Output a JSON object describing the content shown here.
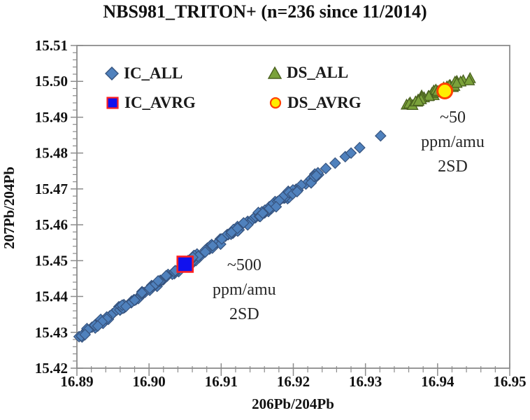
{
  "chart_data": {
    "type": "scatter",
    "title": "NBS981_TRITON+ (n=236 since 11/2014)",
    "xlabel": "206Pb/204Pb",
    "ylabel": "207Pb/204Pb",
    "xlim": [
      16.89,
      16.95
    ],
    "ylim": [
      15.42,
      15.51
    ],
    "x_ticks": [
      16.89,
      16.9,
      16.91,
      16.92,
      16.93,
      16.94,
      16.95
    ],
    "y_ticks": [
      15.42,
      15.43,
      15.44,
      15.45,
      15.46,
      15.47,
      15.48,
      15.49,
      15.5,
      15.51
    ],
    "minor_tick_step": 0.002,
    "grid": false,
    "frame_color": "#8C8C8C",
    "scatter_seed": 20141101,
    "legend_position": "top-inside, two columns",
    "series": [
      {
        "name": "IC_ALL",
        "marker": "diamond",
        "fill": "#4F81BD",
        "stroke": "#36537E",
        "n_dense": 190,
        "x_min": 16.8903,
        "x_max": 16.9235,
        "trend_slope": 1.36,
        "trend_anchor_x": 16.905,
        "trend_anchor_y": 15.4488,
        "y_jitter": 0.0011,
        "extra_points": [
          [
            16.9245,
            15.4757
          ],
          [
            16.9258,
            15.4772
          ],
          [
            16.9272,
            15.479
          ],
          [
            16.928,
            15.48
          ],
          [
            16.9292,
            15.4815
          ],
          [
            16.9321,
            15.4848
          ]
        ]
      },
      {
        "name": "DS_ALL",
        "marker": "triangle",
        "fill": "#7BA23B",
        "stroke": "#4A611F",
        "n_dense": 40,
        "x_min": 16.9357,
        "x_max": 16.9445,
        "trend_slope": 0.84,
        "trend_anchor_x": 16.9357,
        "trend_anchor_y": 15.4934,
        "y_jitter": 0.001,
        "extra_points": []
      },
      {
        "name": "IC_AVRG",
        "marker": "square",
        "fill": "#1111EE",
        "stroke": "#FF2020",
        "points": [
          [
            16.905,
            15.449
          ]
        ]
      },
      {
        "name": "DS_AVRG",
        "marker": "circle",
        "fill": "#FFEE00",
        "stroke": "#FF4000",
        "points": [
          [
            16.941,
            15.4973
          ]
        ]
      }
    ],
    "trend_line": {
      "color": "#B03030",
      "x1": 16.8903,
      "y1": 15.4288,
      "x2": 16.9235,
      "y2": 15.474
    },
    "annotations": [
      {
        "id": "ds-uncertainty",
        "lines": [
          "~50",
          "ppm/amu",
          "2SD"
        ],
        "x": 16.9421,
        "y": 15.483
      },
      {
        "id": "ic-uncertainty",
        "lines": [
          "~500",
          "ppm/amu",
          "2SD"
        ],
        "x": 16.9132,
        "y": 15.4418
      }
    ]
  }
}
